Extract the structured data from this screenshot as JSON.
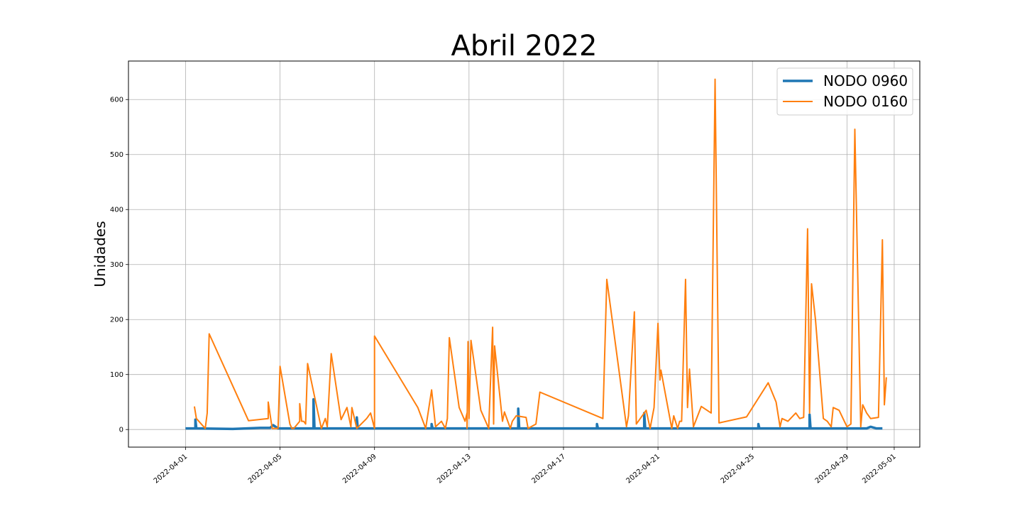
{
  "chart_data": {
    "type": "line",
    "title": "Abril 2022",
    "xlabel": "",
    "ylabel": "Unidades",
    "x_ticks": [
      "2022-04-01",
      "2022-04-05",
      "2022-04-09",
      "2022-04-13",
      "2022-04-17",
      "2022-04-21",
      "2022-04-25",
      "2022-04-29",
      "2022-05-01"
    ],
    "y_ticks": [
      0,
      100,
      200,
      300,
      400,
      500,
      600
    ],
    "xlim": [
      "2022-03-29T14:00",
      "2022-05-02T02:00"
    ],
    "ylim": [
      -32,
      670
    ],
    "grid": true,
    "legend_position": "top-right",
    "series": [
      {
        "name": "NODO 0960",
        "color": "#1f77b4",
        "line_width": 3.5,
        "points": [
          [
            "2022-04-01T00:00",
            2
          ],
          [
            "2022-04-01T10:00",
            2
          ],
          [
            "2022-04-01T10:00",
            18
          ],
          [
            "2022-04-01T11:00",
            2
          ],
          [
            "2022-04-03T00:00",
            1
          ],
          [
            "2022-04-04T04:00",
            3
          ],
          [
            "2022-04-04T14:00",
            3
          ],
          [
            "2022-04-04T17:00",
            8
          ],
          [
            "2022-04-04T22:00",
            2
          ],
          [
            "2022-04-06T10:00",
            2
          ],
          [
            "2022-04-06T10:00",
            55
          ],
          [
            "2022-04-06T11:00",
            2
          ],
          [
            "2022-04-08T06:00",
            2
          ],
          [
            "2022-04-08T06:00",
            22
          ],
          [
            "2022-04-08T07:00",
            2
          ],
          [
            "2022-04-11T10:00",
            2
          ],
          [
            "2022-04-11T10:00",
            10
          ],
          [
            "2022-04-11T11:00",
            2
          ],
          [
            "2022-04-15T02:00",
            2
          ],
          [
            "2022-04-15T02:00",
            38
          ],
          [
            "2022-04-15T03:00",
            2
          ],
          [
            "2022-04-18T10:00",
            2
          ],
          [
            "2022-04-18T10:00",
            10
          ],
          [
            "2022-04-18T11:00",
            2
          ],
          [
            "2022-04-20T10:00",
            2
          ],
          [
            "2022-04-20T10:00",
            30
          ],
          [
            "2022-04-20T11:00",
            2
          ],
          [
            "2022-04-25T06:00",
            2
          ],
          [
            "2022-04-25T06:00",
            10
          ],
          [
            "2022-04-25T07:00",
            2
          ],
          [
            "2022-04-27T10:00",
            2
          ],
          [
            "2022-04-27T10:00",
            27
          ],
          [
            "2022-04-27T11:00",
            2
          ],
          [
            "2022-04-29T12:00",
            2
          ],
          [
            "2022-04-29T20:00",
            2
          ],
          [
            "2022-04-30T00:00",
            5
          ],
          [
            "2022-04-30T06:00",
            2
          ],
          [
            "2022-04-30T12:00",
            2
          ],
          [
            "2022-04-30T12:00",
            2
          ]
        ]
      },
      {
        "name": "NODO 0160",
        "color": "#ff7f0e",
        "line_width": 2,
        "points": [
          [
            "2022-04-01T09:00",
            42
          ],
          [
            "2022-04-01T11:00",
            20
          ],
          [
            "2022-04-01T20:00",
            2
          ],
          [
            "2022-04-01T22:00",
            30
          ],
          [
            "2022-04-02T00:00",
            174
          ],
          [
            "2022-04-03T16:00",
            16
          ],
          [
            "2022-04-04T12:00",
            20
          ],
          [
            "2022-04-04T12:00",
            50
          ],
          [
            "2022-04-04T16:00",
            2
          ],
          [
            "2022-04-04T22:00",
            2
          ],
          [
            "2022-04-05T00:00",
            115
          ],
          [
            "2022-04-05T10:00",
            10
          ],
          [
            "2022-04-05T12:00",
            2
          ],
          [
            "2022-04-05T14:00",
            2
          ],
          [
            "2022-04-05T20:00",
            15
          ],
          [
            "2022-04-05T20:00",
            47
          ],
          [
            "2022-04-05T22:00",
            15
          ],
          [
            "2022-04-06T00:00",
            15
          ],
          [
            "2022-04-06T02:00",
            10
          ],
          [
            "2022-04-06T04:00",
            120
          ],
          [
            "2022-04-06T14:00",
            35
          ],
          [
            "2022-04-06T18:00",
            2
          ],
          [
            "2022-04-06T22:00",
            20
          ],
          [
            "2022-04-07T00:00",
            5
          ],
          [
            "2022-04-07T04:00",
            138
          ],
          [
            "2022-04-07T14:00",
            18
          ],
          [
            "2022-04-07T20:00",
            40
          ],
          [
            "2022-04-08T00:00",
            5
          ],
          [
            "2022-04-08T01:00",
            40
          ],
          [
            "2022-04-08T06:00",
            2
          ],
          [
            "2022-04-08T16:00",
            20
          ],
          [
            "2022-04-08T20:00",
            30
          ],
          [
            "2022-04-09T00:00",
            2
          ],
          [
            "2022-04-09T00:00",
            170
          ],
          [
            "2022-04-10T20:00",
            40
          ],
          [
            "2022-04-11T04:00",
            2
          ],
          [
            "2022-04-11T10:00",
            72
          ],
          [
            "2022-04-11T14:00",
            5
          ],
          [
            "2022-04-11T20:00",
            15
          ],
          [
            "2022-04-12T00:00",
            2
          ],
          [
            "2022-04-12T02:00",
            20
          ],
          [
            "2022-04-12T04:00",
            167
          ],
          [
            "2022-04-12T14:00",
            40
          ],
          [
            "2022-04-12T20:00",
            15
          ],
          [
            "2022-04-12T22:00",
            30
          ],
          [
            "2022-04-12T22:00",
            2
          ],
          [
            "2022-04-12T23:00",
            160
          ],
          [
            "2022-04-13T00:00",
            20
          ],
          [
            "2022-04-13T02:00",
            162
          ],
          [
            "2022-04-13T12:00",
            35
          ],
          [
            "2022-04-13T20:00",
            2
          ],
          [
            "2022-04-14T00:00",
            186
          ],
          [
            "2022-04-14T01:00",
            10
          ],
          [
            "2022-04-14T02:00",
            152
          ],
          [
            "2022-04-14T10:00",
            15
          ],
          [
            "2022-04-14T12:00",
            32
          ],
          [
            "2022-04-14T18:00",
            2
          ],
          [
            "2022-04-14T20:00",
            15
          ],
          [
            "2022-04-15T00:00",
            25
          ],
          [
            "2022-04-15T10:00",
            22
          ],
          [
            "2022-04-15T12:00",
            2
          ],
          [
            "2022-04-15T20:00",
            10
          ],
          [
            "2022-04-16T00:00",
            68
          ],
          [
            "2022-04-18T16:00",
            20
          ],
          [
            "2022-04-18T20:00",
            273
          ],
          [
            "2022-04-19T16:00",
            5
          ],
          [
            "2022-04-19T18:00",
            25
          ],
          [
            "2022-04-20T00:00",
            214
          ],
          [
            "2022-04-20T02:00",
            10
          ],
          [
            "2022-04-20T12:00",
            35
          ],
          [
            "2022-04-20T16:00",
            2
          ],
          [
            "2022-04-20T20:00",
            40
          ],
          [
            "2022-04-21T00:00",
            193
          ],
          [
            "2022-04-21T02:00",
            90
          ],
          [
            "2022-04-21T03:00",
            108
          ],
          [
            "2022-04-21T14:00",
            2
          ],
          [
            "2022-04-21T16:00",
            25
          ],
          [
            "2022-04-21T20:00",
            2
          ],
          [
            "2022-04-21T22:00",
            15
          ],
          [
            "2022-04-22T00:00",
            15
          ],
          [
            "2022-04-22T04:00",
            273
          ],
          [
            "2022-04-22T06:00",
            40
          ],
          [
            "2022-04-22T08:00",
            110
          ],
          [
            "2022-04-22T12:00",
            5
          ],
          [
            "2022-04-22T20:00",
            42
          ],
          [
            "2022-04-23T06:00",
            30
          ],
          [
            "2022-04-23T10:00",
            637
          ],
          [
            "2022-04-23T14:00",
            12
          ],
          [
            "2022-04-24T18:00",
            23
          ],
          [
            "2022-04-25T16:00",
            85
          ],
          [
            "2022-04-26T00:00",
            50
          ],
          [
            "2022-04-26T04:00",
            5
          ],
          [
            "2022-04-26T06:00",
            20
          ],
          [
            "2022-04-26T12:00",
            15
          ],
          [
            "2022-04-26T20:00",
            30
          ],
          [
            "2022-04-27T00:00",
            20
          ],
          [
            "2022-04-27T04:00",
            22
          ],
          [
            "2022-04-27T08:00",
            365
          ],
          [
            "2022-04-27T10:00",
            30
          ],
          [
            "2022-04-27T12:00",
            265
          ],
          [
            "2022-04-27T16:00",
            200
          ],
          [
            "2022-04-28T00:00",
            20
          ],
          [
            "2022-04-28T04:00",
            15
          ],
          [
            "2022-04-28T08:00",
            5
          ],
          [
            "2022-04-28T10:00",
            40
          ],
          [
            "2022-04-28T16:00",
            35
          ],
          [
            "2022-04-29T00:00",
            5
          ],
          [
            "2022-04-29T04:00",
            10
          ],
          [
            "2022-04-29T08:00",
            546
          ],
          [
            "2022-04-29T14:00",
            5
          ],
          [
            "2022-04-29T16:00",
            45
          ],
          [
            "2022-04-29T20:00",
            30
          ],
          [
            "2022-04-30T00:00",
            20
          ],
          [
            "2022-04-30T08:00",
            22
          ],
          [
            "2022-04-30T12:00",
            345
          ],
          [
            "2022-04-30T14:00",
            45
          ],
          [
            "2022-04-30T16:00",
            95
          ]
        ]
      }
    ]
  }
}
